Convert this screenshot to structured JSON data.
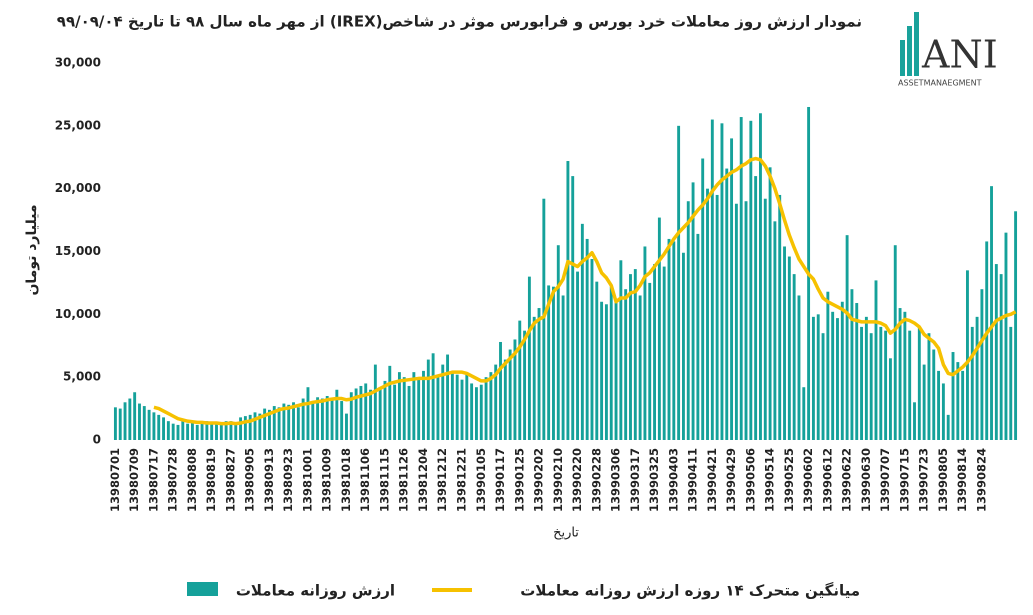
{
  "logo": {
    "name": "ANI",
    "tagline": "ASSETMANAEGMENT"
  },
  "chart_data": {
    "type": "bar",
    "title": "نمودار ارزش روز معاملات خرد بورس و فرابورس موثر در شاخص(IREX)  از مهر ماه سال ۹۸ تا تاریخ ۹۹/۰۹/۰۴",
    "x_label": "تاریخ",
    "y_label": "میلیارد تومان",
    "legend": "bottom",
    "categories": [
      "13980701",
      null,
      null,
      null,
      "13980709",
      null,
      null,
      null,
      "13980717",
      null,
      null,
      null,
      "13980728",
      null,
      null,
      null,
      "13980808",
      null,
      null,
      null,
      "13980819",
      null,
      null,
      null,
      "13980827",
      null,
      null,
      null,
      "13980905",
      null,
      null,
      null,
      "13980913",
      null,
      null,
      null,
      "13980923",
      null,
      null,
      null,
      "13981001",
      null,
      null,
      null,
      "13981009",
      null,
      null,
      null,
      "13981018",
      null,
      null,
      null,
      "13981106",
      null,
      null,
      null,
      "13981115",
      null,
      null,
      null,
      "13981126",
      null,
      null,
      null,
      "13981204",
      null,
      null,
      null,
      "13981212",
      null,
      null,
      null,
      "13981221",
      null,
      null,
      null,
      "13990105",
      null,
      null,
      null,
      "13990117",
      null,
      null,
      null,
      "13990125",
      null,
      null,
      null,
      "13990202",
      null,
      null,
      null,
      "13990210",
      null,
      null,
      null,
      "13990220",
      null,
      null,
      null,
      "13990228",
      null,
      null,
      null,
      "13990306",
      null,
      null,
      null,
      "13990317",
      null,
      null,
      null,
      "13990325",
      null,
      null,
      null,
      "13990403",
      null,
      null,
      null,
      "13990411",
      null,
      null,
      null,
      "13990421",
      null,
      null,
      null,
      "13990429",
      null,
      null,
      null,
      "13990506",
      null,
      null,
      null,
      "13990514",
      null,
      null,
      null,
      "13990525",
      null,
      null,
      null,
      "13990602",
      null,
      null,
      null,
      "13990612",
      null,
      null,
      null,
      "13990622",
      null,
      null,
      null,
      "13990630",
      null,
      null,
      null,
      "13990707",
      null,
      null,
      null,
      "13990715",
      null,
      null,
      null,
      "13990723",
      null,
      null,
      null,
      "13990805",
      null,
      null,
      null,
      "13990814",
      null,
      null,
      null,
      "13990824",
      null,
      null,
      null,
      null,
      null,
      null,
      null
    ],
    "series": [
      {
        "name": "ارزش روزانه معاملات",
        "type": "bar",
        "color": "#15a19a",
        "values": [
          2600,
          2500,
          3000,
          3300,
          3800,
          2900,
          2700,
          2400,
          2200,
          2000,
          1800,
          1500,
          1300,
          1200,
          1500,
          1300,
          1400,
          1200,
          1300,
          1500,
          1300,
          1400,
          1200,
          1500,
          1500,
          1400,
          1800,
          1900,
          2000,
          2200,
          2100,
          2500,
          2400,
          2700,
          2600,
          2900,
          2800,
          3000,
          2600,
          3300,
          4200,
          2900,
          3400,
          3300,
          3500,
          3200,
          4000,
          3100,
          2100,
          3800,
          4100,
          4300,
          4500,
          4000,
          6000,
          4200,
          4700,
          5900,
          4400,
          5400,
          5000,
          4300,
          5400,
          4800,
          5500,
          6400,
          6900,
          5000,
          6000,
          6800,
          5500,
          5200,
          4800,
          5300,
          4500,
          4200,
          4400,
          5000,
          5400,
          6000,
          7800,
          6400,
          7200,
          8000,
          9500,
          8700,
          13000,
          9800,
          10500,
          19200,
          12300,
          12200,
          15500,
          11500,
          22200,
          21000,
          13400,
          17200,
          16000,
          14400,
          12600,
          11000,
          10800,
          12200,
          11200,
          14300,
          12000,
          13200,
          13600,
          11500,
          15400,
          12500,
          14000,
          17700,
          13800,
          16000,
          15800,
          25000,
          14900,
          19000,
          20500,
          16400,
          22400,
          20000,
          25500,
          19500,
          25200,
          21600,
          24000,
          18800,
          25700,
          19000,
          25400,
          21000,
          26000,
          19200,
          21700,
          17400,
          19500,
          15400,
          14600,
          13200,
          11500,
          4200,
          26500,
          9800,
          10000,
          8500,
          11800,
          10200,
          9700,
          11000,
          16300,
          12000,
          10900,
          9000,
          9800,
          8500,
          12700,
          9000,
          8700,
          6500,
          15500,
          10500,
          10200,
          8700,
          3000,
          9000,
          6000,
          8500,
          7200,
          5500,
          4500,
          2000,
          7000,
          6200,
          5500,
          13500,
          9000,
          9800,
          12000,
          15800,
          20200,
          14000,
          13200,
          16500,
          9000,
          18200
        ]
      },
      {
        "name": "میانگین متحرک ۱۴ روزه ارزش روزانه معاملات",
        "type": "line",
        "color": "#f6c100",
        "values": [
          null,
          null,
          null,
          null,
          null,
          null,
          null,
          null,
          2600,
          2500,
          2300,
          2100,
          1900,
          1700,
          1600,
          1500,
          1450,
          1400,
          1400,
          1350,
          1350,
          1350,
          1300,
          1300,
          1350,
          1300,
          1350,
          1450,
          1500,
          1650,
          1800,
          1950,
          2100,
          2250,
          2400,
          2500,
          2550,
          2650,
          2750,
          2850,
          2900,
          3000,
          3050,
          3100,
          3200,
          3250,
          3300,
          3300,
          3200,
          3250,
          3400,
          3500,
          3600,
          3700,
          3900,
          4100,
          4300,
          4500,
          4600,
          4700,
          4750,
          4800,
          4850,
          4900,
          4900,
          4900,
          5000,
          5100,
          5200,
          5300,
          5400,
          5400,
          5400,
          5300,
          5100,
          4900,
          4700,
          4700,
          4900,
          5200,
          5700,
          6100,
          6500,
          6900,
          7400,
          8000,
          8700,
          9300,
          9600,
          9800,
          10800,
          11800,
          12200,
          12800,
          14200,
          14000,
          13800,
          14200,
          14500,
          14900,
          14200,
          13300,
          12900,
          12300,
          11000,
          11300,
          11300,
          11700,
          11800,
          12300,
          13000,
          13300,
          13800,
          14300,
          14800,
          15400,
          16000,
          16500,
          16900,
          17300,
          17800,
          18300,
          18700,
          19200,
          19800,
          20300,
          20700,
          21000,
          21300,
          21500,
          21800,
          22000,
          22300,
          22400,
          22300,
          21800,
          21000,
          20000,
          18800,
          17500,
          16300,
          15300,
          14400,
          13800,
          13200,
          12800,
          12000,
          11300,
          11000,
          10800,
          10600,
          10400,
          10100,
          9600,
          9500,
          9400,
          9400,
          9400,
          9400,
          9300,
          9100,
          8500,
          8800,
          9300,
          9600,
          9500,
          9300,
          9000,
          8400,
          8100,
          7800,
          7300,
          6000,
          5300,
          5200,
          5500,
          5800,
          6200,
          6700,
          7300,
          7900,
          8500,
          9000,
          9500,
          9700,
          9900,
          10000,
          10200
        ]
      }
    ],
    "ylim": [
      0,
      30000
    ],
    "yticks": [
      0,
      {
        "value": 5000,
        "label": "5,000"
      },
      {
        "value": 10000,
        "label": "10,000"
      },
      {
        "value": 15000,
        "label": "15,000"
      },
      {
        "value": 20000,
        "label": "20,000"
      },
      {
        "value": 25000,
        "label": "25,000"
      },
      {
        "value": 30000,
        "label": "30,000"
      }
    ]
  }
}
